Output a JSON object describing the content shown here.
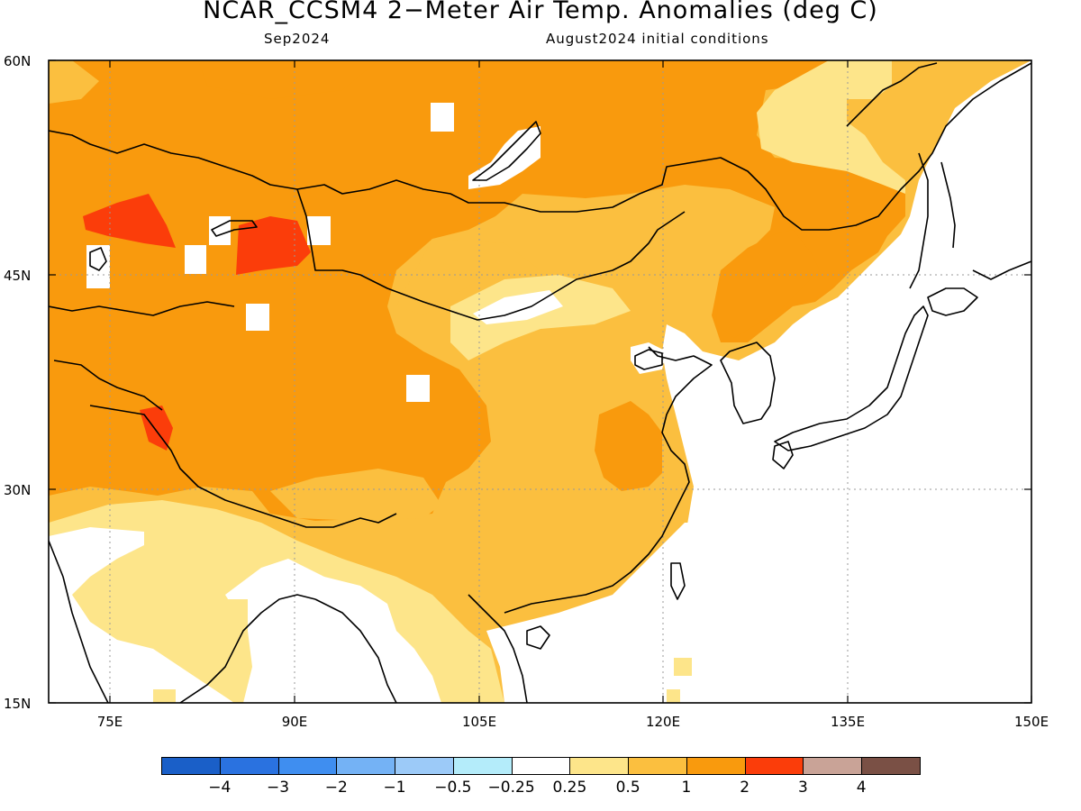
{
  "title": "NCAR_CCSM4 2−Meter Air Temp. Anomalies (deg C)",
  "subtitle_left": "Sep2024",
  "subtitle_right": "August2024 initial conditions",
  "map": {
    "lon_range": [
      70,
      150
    ],
    "lat_range": [
      15,
      60
    ],
    "lat_labels": [
      "60N",
      "45N",
      "30N",
      "15N"
    ],
    "lon_labels": [
      "75E",
      "90E",
      "105E",
      "120E",
      "135E",
      "150E"
    ]
  },
  "colorbar": {
    "colors": [
      "#1a5fc8",
      "#2a72e0",
      "#3f8ef0",
      "#74b2f5",
      "#9ccaf8",
      "#b4ecfa",
      "#ffffff",
      "#fde58a",
      "#fbbf3f",
      "#f99a0d",
      "#fb3d0a",
      "#c9a397",
      "#7a5045"
    ],
    "labels": [
      "−4",
      "−3",
      "−2",
      "−1",
      "−0.5",
      "−0.25",
      "0.25",
      "0.5",
      "1",
      "2",
      "3",
      "4"
    ]
  }
}
